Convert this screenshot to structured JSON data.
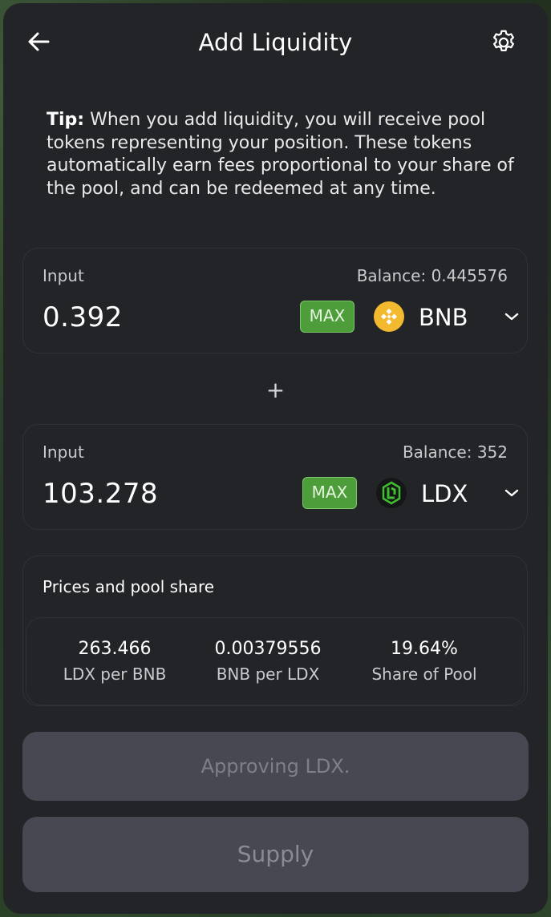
{
  "header": {
    "title": "Add Liquidity"
  },
  "tip": {
    "label": "Tip:",
    "text": " When you add liquidity, you will receive pool tokens representing your position. These tokens automatically earn fees proportional to your share of the pool, and can be redeemed at any time."
  },
  "plus_symbol": "+",
  "inputs": [
    {
      "label": "Input",
      "balance": "Balance: 0.445576",
      "amount": "0.392",
      "max_label": "MAX",
      "token": "BNB",
      "token_icon": "bnb-icon",
      "token_color": "#F3BA2F"
    },
    {
      "label": "Input",
      "balance": "Balance: 352",
      "amount": "103.278",
      "max_label": "MAX",
      "token": "LDX",
      "token_icon": "ldx-icon",
      "token_color": "#3fbf2f"
    }
  ],
  "prices": {
    "title": "Prices and pool share",
    "stats": [
      {
        "value": "263.466",
        "label": "LDX per BNB"
      },
      {
        "value": "0.00379556",
        "label": "BNB per LDX"
      },
      {
        "value": "19.64%",
        "label": "Share of Pool"
      }
    ]
  },
  "buttons": {
    "approve": "Approving LDX.",
    "supply": "Supply"
  },
  "colors": {
    "card_bg": "#232427",
    "max_green": "#4d9e3a",
    "disabled_button": "#474851"
  }
}
